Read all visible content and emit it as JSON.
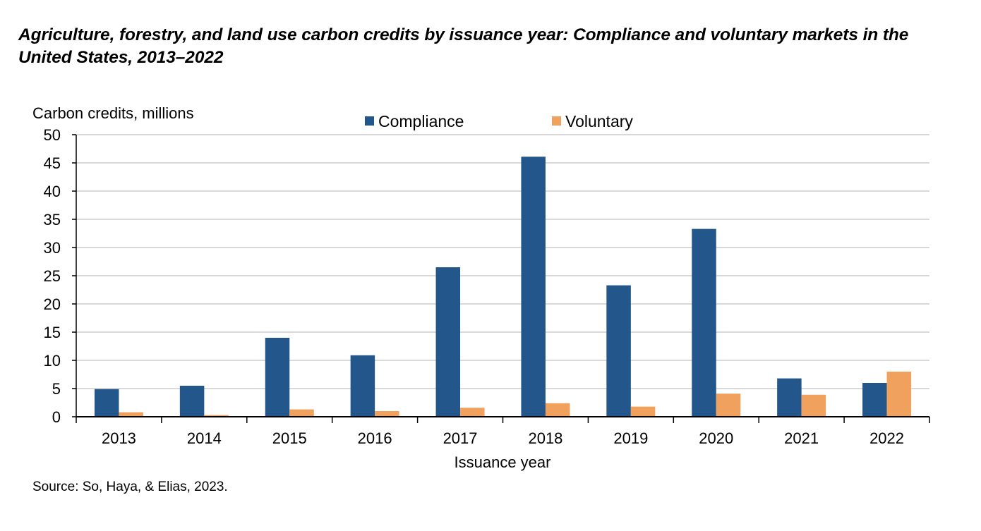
{
  "chart_data": {
    "type": "bar",
    "title": "Agriculture, forestry, and land use carbon credits by issuance year: Compliance and voluntary markets in the United States, 2013–2022",
    "xlabel": "Issuance year",
    "ylabel": "Carbon credits, millions",
    "ylim": [
      0,
      50
    ],
    "yticks": [
      0,
      5,
      10,
      15,
      20,
      25,
      30,
      35,
      40,
      45,
      50
    ],
    "grid": true,
    "legend_position": "top-center",
    "categories": [
      "2013",
      "2014",
      "2015",
      "2016",
      "2017",
      "2018",
      "2019",
      "2020",
      "2021",
      "2022"
    ],
    "series": [
      {
        "name": "Compliance",
        "color": "#23568A",
        "values": [
          4.9,
          5.5,
          14.0,
          10.9,
          26.5,
          46.1,
          23.3,
          33.3,
          6.8,
          6.0
        ]
      },
      {
        "name": "Voluntary",
        "color": "#F1A15E",
        "values": [
          0.8,
          0.3,
          1.3,
          1.0,
          1.6,
          2.4,
          1.8,
          4.1,
          3.9,
          8.0
        ]
      }
    ],
    "source": "Source: So, Haya, & Elias, 2023."
  }
}
